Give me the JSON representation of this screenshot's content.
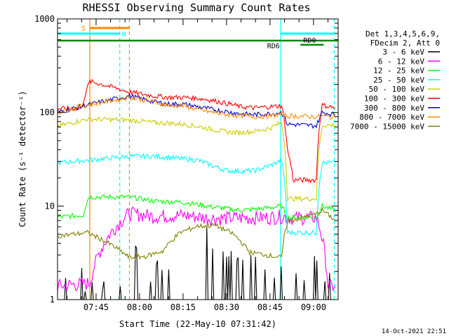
{
  "chart_data": {
    "type": "line",
    "title": "RHESSI Observing Summary Count Rates",
    "xlabel": "Start Time (22-May-10 07:31:42)",
    "ylabel": "Count Rate (s⁻¹ detector⁻¹)",
    "yscale": "log",
    "ylim": [
      1,
      1000
    ],
    "xlim": [
      "07:31:42",
      "09:08:30"
    ],
    "x_ticks": [
      "07:45",
      "08:00",
      "08:15",
      "08:30",
      "08:45",
      "09:00"
    ],
    "y_ticks": [
      "1",
      "10",
      "100",
      "1000"
    ],
    "legend_header": [
      "Det 1,3,4,5,6,9,",
      "FDecim 2, Att 0"
    ],
    "series": [
      {
        "name": "3 - 6 keV",
        "color": "#000000",
        "points": [
          [
            "07:31:42",
            1
          ],
          [
            "07:42:50",
            1
          ],
          [
            "07:55:20",
            1
          ],
          [
            "07:57:00",
            1.8
          ],
          [
            "08:05:00",
            1.5
          ],
          [
            "08:12:00",
            1.7
          ],
          [
            "08:20:00",
            2.0
          ],
          [
            "08:24:00",
            3.6
          ],
          [
            "08:30:00",
            1.6
          ],
          [
            "08:40:00",
            1.6
          ],
          [
            "08:46:30",
            1
          ],
          [
            "08:52:00",
            1.8
          ],
          [
            "09:07:30",
            1
          ]
        ]
      },
      {
        "name": "6 - 12 keV",
        "color": "#ff00ff",
        "points": [
          [
            "07:31:42",
            1.4
          ],
          [
            "07:42:50",
            1.5
          ],
          [
            "07:56:30",
            8.4
          ],
          [
            "08:05:00",
            7.8
          ],
          [
            "08:15:00",
            8.0
          ],
          [
            "08:25:00",
            7.4
          ],
          [
            "08:35:00",
            7.5
          ],
          [
            "08:45:00",
            7.6
          ],
          [
            "08:49:00",
            7.8
          ],
          [
            "08:53:00",
            7.5
          ],
          [
            "09:01:00",
            7.6
          ],
          [
            "09:05:00",
            1.4
          ],
          [
            "09:07:30",
            1.4
          ]
        ]
      },
      {
        "name": "12 - 25 keV",
        "color": "#00ff00",
        "points": [
          [
            "07:31:42",
            7.6
          ],
          [
            "07:40:30",
            8.0
          ],
          [
            "07:42:30",
            12.5
          ],
          [
            "07:56:30",
            12.5
          ],
          [
            "08:05:00",
            11.3
          ],
          [
            "08:15:00",
            11.0
          ],
          [
            "08:25:00",
            9.8
          ],
          [
            "08:35:00",
            9.0
          ],
          [
            "08:45:00",
            9.6
          ],
          [
            "08:49:00",
            10.0
          ],
          [
            "08:51:00",
            7.5
          ],
          [
            "09:01:00",
            7.6
          ],
          [
            "09:03:00",
            10.0
          ],
          [
            "09:07:30",
            9.0
          ]
        ]
      },
      {
        "name": "25 - 50 keV",
        "color": "#00ffff",
        "points": [
          [
            "07:31:42",
            29
          ],
          [
            "07:42:50",
            31
          ],
          [
            "07:56:30",
            34
          ],
          [
            "08:05:00",
            34
          ],
          [
            "08:10:00",
            33
          ],
          [
            "08:15:00",
            32
          ],
          [
            "08:20:00",
            31
          ],
          [
            "08:25:00",
            27
          ],
          [
            "08:30:00",
            24
          ],
          [
            "08:35:00",
            23.5
          ],
          [
            "08:40:00",
            24
          ],
          [
            "08:45:00",
            27
          ],
          [
            "08:49:00",
            31
          ],
          [
            "08:51:00",
            5.2
          ],
          [
            "09:01:00",
            5.2
          ],
          [
            "09:03:00",
            29
          ],
          [
            "09:07:30",
            29
          ]
        ]
      },
      {
        "name": "50 - 100 keV",
        "color": "#cccc00",
        "points": [
          [
            "07:31:42",
            71
          ],
          [
            "07:42:00",
            85
          ],
          [
            "07:56:30",
            83
          ],
          [
            "08:05:00",
            78
          ],
          [
            "08:10:00",
            77
          ],
          [
            "08:15:00",
            75
          ],
          [
            "08:20:00",
            71
          ],
          [
            "08:25:00",
            66
          ],
          [
            "08:30:00",
            62
          ],
          [
            "08:35:00",
            61
          ],
          [
            "08:40:00",
            63
          ],
          [
            "08:45:00",
            68
          ],
          [
            "08:49:00",
            78
          ],
          [
            "08:51:00",
            12
          ],
          [
            "09:01:00",
            12
          ],
          [
            "09:03:00",
            73
          ],
          [
            "09:07:30",
            73
          ]
        ]
      },
      {
        "name": "100 - 300 keV",
        "color": "#ff0000",
        "points": [
          [
            "07:31:42",
            110
          ],
          [
            "07:40:00",
            110
          ],
          [
            "07:42:50",
            215
          ],
          [
            "07:56:30",
            165
          ],
          [
            "08:05:00",
            150
          ],
          [
            "08:10:00",
            145
          ],
          [
            "08:15:00",
            145
          ],
          [
            "08:20:00",
            142
          ],
          [
            "08:25:00",
            135
          ],
          [
            "08:30:00",
            125
          ],
          [
            "08:35:00",
            115
          ],
          [
            "08:40:00",
            112
          ],
          [
            "08:45:00",
            115
          ],
          [
            "08:49:00",
            118
          ],
          [
            "08:51:00",
            40
          ],
          [
            "08:53:00",
            19
          ],
          [
            "09:01:00",
            19
          ],
          [
            "09:03:00",
            120
          ],
          [
            "09:07:30",
            112
          ]
        ]
      },
      {
        "name": "300 - 800 keV",
        "color": "#0000cc",
        "points": [
          [
            "07:31:42",
            100
          ],
          [
            "07:42:00",
            120
          ],
          [
            "07:56:30",
            150
          ],
          [
            "08:05:00",
            130
          ],
          [
            "08:10:00",
            123
          ],
          [
            "08:15:00",
            123
          ],
          [
            "08:20:00",
            115
          ],
          [
            "08:25:00",
            108
          ],
          [
            "08:30:00",
            102
          ],
          [
            "08:35:00",
            97
          ],
          [
            "08:40:00",
            95
          ],
          [
            "08:45:00",
            97
          ],
          [
            "08:49:00",
            100
          ],
          [
            "08:51:00",
            75
          ],
          [
            "09:01:00",
            72
          ],
          [
            "09:03:00",
            100
          ],
          [
            "09:07:30",
            95
          ]
        ]
      },
      {
        "name": "800 - 7000 keV",
        "color": "#ff8800",
        "points": [
          [
            "07:31:42",
            100
          ],
          [
            "07:42:00",
            120
          ],
          [
            "07:56:30",
            145
          ],
          [
            "08:05:00",
            130
          ],
          [
            "08:10:00",
            118
          ],
          [
            "08:15:00",
            118
          ],
          [
            "08:20:00",
            108
          ],
          [
            "08:25:00",
            100
          ],
          [
            "08:30:00",
            95
          ],
          [
            "08:35:00",
            92
          ],
          [
            "08:40:00",
            90
          ],
          [
            "08:45:00",
            92
          ],
          [
            "08:49:00",
            96
          ],
          [
            "08:51:00",
            92
          ],
          [
            "09:01:00",
            90
          ],
          [
            "09:03:00",
            92
          ],
          [
            "09:07:30",
            88
          ]
        ]
      },
      {
        "name": "7000 - 15000 keV",
        "color": "#808000",
        "points": [
          [
            "07:31:42",
            4.8
          ],
          [
            "07:42:00",
            5.2
          ],
          [
            "07:56:30",
            2.8
          ],
          [
            "08:02:00",
            2.9
          ],
          [
            "08:08:00",
            3.3
          ],
          [
            "08:14:00",
            5.2
          ],
          [
            "08:20:00",
            6.1
          ],
          [
            "08:26:00",
            6.2
          ],
          [
            "08:32:00",
            5.1
          ],
          [
            "08:38:00",
            3.2
          ],
          [
            "08:44:00",
            3.0
          ],
          [
            "08:49:00",
            2.8
          ],
          [
            "08:51:00",
            6.8
          ],
          [
            "09:01:00",
            8.2
          ],
          [
            "09:03:00",
            9.0
          ],
          [
            "09:07:30",
            7.0
          ]
        ]
      }
    ],
    "annotations": {
      "attenuator_label": "S",
      "night_label": "N",
      "decimation_labels": [
        "RD0",
        "RD6"
      ]
    },
    "footer_date": "14-Oct-2021 22:51"
  }
}
